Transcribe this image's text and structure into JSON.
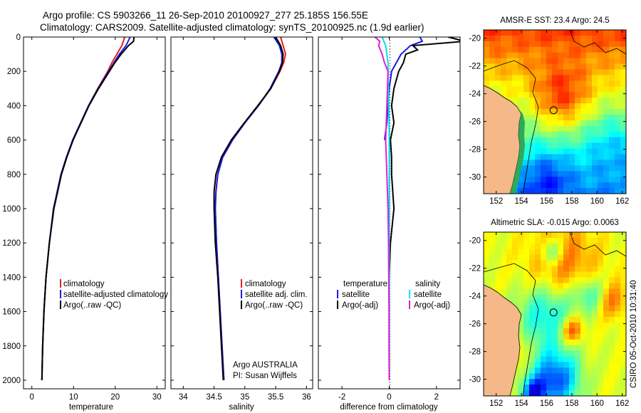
{
  "header": {
    "title_line1": "Argo profile: CS 5903266_11 26-Sep-2010 20100927_277 25.185S 156.55E",
    "title_line2": "Climatology: CARS2009. Satellite-adjusted climatology: synTS_20100925.nc (1.9d earlier)"
  },
  "chart_data": [
    {
      "type": "line",
      "id": "temperature",
      "xlabel": "temperature",
      "ylabel": "",
      "xlim": [
        -2,
        32
      ],
      "ylim": [
        0,
        2050
      ],
      "y_inverted": true,
      "x_ticks": [
        "0",
        "10",
        "20",
        "30"
      ],
      "y_ticks": [
        "0",
        "200",
        "400",
        "600",
        "800",
        "1000",
        "1200",
        "1400",
        "1600",
        "1800",
        "2000"
      ],
      "legend": [
        "climatology",
        "satellite-adjusted climatology",
        "Argo(..raw -QC)"
      ],
      "series": [
        {
          "name": "climatology",
          "color": "#e0201a",
          "depth": [
            0,
            50,
            100,
            150,
            200,
            300,
            400,
            500,
            600,
            700,
            800,
            1000,
            1200,
            1400,
            1600,
            1800,
            2000
          ],
          "values": [
            22.3,
            21.6,
            20.4,
            19.2,
            18.2,
            15.8,
            13.6,
            11.7,
            9.8,
            8.3,
            7.0,
            5.2,
            4.2,
            3.4,
            2.9,
            2.6,
            2.4
          ]
        },
        {
          "name": "satellite-adjusted climatology",
          "color": "#1a1ae8",
          "depth": [
            0,
            50,
            100,
            150,
            200,
            300,
            400,
            500,
            600,
            700,
            800,
            1000,
            1200,
            1400,
            1600,
            1800,
            2000
          ],
          "values": [
            23.6,
            22.6,
            21.0,
            19.7,
            18.4,
            15.9,
            13.6,
            11.7,
            9.8,
            8.3,
            7.0,
            5.2,
            4.2,
            3.4,
            2.9,
            2.6,
            2.4
          ]
        },
        {
          "name": "Argo(..raw -QC)",
          "color": "#000000",
          "depth": [
            0,
            25,
            50,
            100,
            150,
            200,
            300,
            400,
            500,
            600,
            700,
            800,
            1000,
            1200,
            1400,
            1600,
            1800,
            2000
          ],
          "values": [
            24.5,
            24.4,
            23.2,
            21.4,
            19.9,
            18.6,
            16.0,
            13.7,
            11.8,
            9.9,
            8.4,
            7.1,
            5.3,
            4.2,
            3.4,
            2.9,
            2.6,
            2.4
          ]
        }
      ]
    },
    {
      "type": "line",
      "id": "salinity",
      "xlabel": "salinity",
      "ylabel": "",
      "xlim": [
        33.8,
        36.1
      ],
      "ylim": [
        0,
        2050
      ],
      "y_inverted": true,
      "x_ticks": [
        "34",
        "34.5",
        "35",
        "35.5",
        "36"
      ],
      "legend": [
        "climatology",
        "satellite adj. clim.",
        "Argo(..raw -QC)"
      ],
      "annotation_line1": "Argo AUSTRALIA",
      "annotation_line2": "PI: Susan Wijffels",
      "series": [
        {
          "name": "climatology",
          "color": "#e0201a",
          "depth": [
            0,
            50,
            100,
            150,
            200,
            300,
            400,
            500,
            600,
            700,
            800,
            900,
            1000,
            1200,
            1400,
            1600,
            1800,
            2000
          ],
          "values": [
            35.58,
            35.62,
            35.66,
            35.63,
            35.57,
            35.42,
            35.22,
            35.0,
            34.8,
            34.64,
            34.56,
            34.53,
            34.52,
            34.54,
            34.57,
            34.6,
            34.63,
            34.66
          ]
        },
        {
          "name": "satellite adj. clim.",
          "color": "#1a1ae8",
          "depth": [
            0,
            50,
            100,
            150,
            200,
            300,
            400,
            500,
            600,
            700,
            800,
            900,
            1000,
            1200,
            1400,
            1600,
            1800,
            2000
          ],
          "values": [
            35.47,
            35.56,
            35.6,
            35.6,
            35.55,
            35.41,
            35.22,
            35.0,
            34.8,
            34.64,
            34.56,
            34.53,
            34.52,
            34.54,
            34.57,
            34.6,
            34.63,
            34.66
          ]
        },
        {
          "name": "Argo(..raw -QC)",
          "color": "#000000",
          "depth": [
            0,
            50,
            100,
            150,
            200,
            300,
            400,
            500,
            600,
            700,
            800,
            900,
            1000,
            1200,
            1400,
            1600,
            1800,
            2000
          ],
          "values": [
            35.5,
            35.58,
            35.62,
            35.61,
            35.56,
            35.42,
            35.21,
            34.99,
            34.78,
            34.62,
            34.53,
            34.5,
            34.5,
            34.52,
            34.56,
            34.59,
            34.62,
            34.65
          ]
        }
      ]
    },
    {
      "type": "line",
      "id": "difference",
      "xlabel": "difference from climatology",
      "ylabel": "",
      "xlim": [
        -3,
        3
      ],
      "ylim": [
        0,
        2050
      ],
      "y_inverted": true,
      "x_ticks": [
        "-2",
        "0",
        "2"
      ],
      "legend_left_title": "temperature",
      "legend_right_title": "salinity",
      "legend": [
        "satellite",
        "Argo(-adj)",
        "satellite",
        "Argo(-adj)"
      ],
      "series": [
        {
          "name": "temperature satellite",
          "color": "#1a1ae8",
          "depth": [
            0,
            25,
            50,
            100,
            150,
            200,
            300,
            400,
            500,
            600
          ],
          "values": [
            1.3,
            1.4,
            0.9,
            0.5,
            0.3,
            0.1,
            0.0,
            -0.05,
            -0.1,
            -0.2
          ]
        },
        {
          "name": "temperature Argo(-adj)",
          "color": "#000000",
          "depth": [
            0,
            25,
            50,
            75,
            100,
            150,
            200,
            300,
            400,
            500,
            600,
            700,
            800,
            1000,
            1200,
            1400,
            1600,
            1800,
            2000
          ],
          "values": [
            2.5,
            3.2,
            1.0,
            1.2,
            0.7,
            0.6,
            0.4,
            0.2,
            0.1,
            0.2,
            0.05,
            0.1,
            0.1,
            0.2,
            0.05,
            0.0,
            0.0,
            0.0,
            0.0
          ]
        },
        {
          "name": "salinity satellite",
          "color": "#00e0f0",
          "depth": [
            0,
            50,
            100,
            150,
            200,
            300,
            400,
            500,
            600,
            700,
            800,
            1000,
            1200,
            1400,
            1600,
            1800,
            2000
          ],
          "values": [
            -0.3,
            -0.15,
            -0.1,
            -0.05,
            -0.05,
            -0.03,
            -0.02,
            -0.01,
            0.0,
            0.0,
            0.0,
            0.0,
            0.0,
            0.0,
            0.0,
            0.0,
            0.0
          ]
        },
        {
          "name": "salinity Argo(-adj)",
          "color": "#e020d0",
          "depth": [
            0,
            25,
            50,
            100,
            150,
            200,
            400,
            600,
            800,
            1000,
            1200,
            1400,
            1600,
            1800,
            2000
          ],
          "values": [
            -0.6,
            -0.4,
            -0.45,
            -0.3,
            -0.2,
            -0.05,
            -0.1,
            -0.15,
            -0.1,
            -0.05,
            -0.03,
            -0.02,
            -0.01,
            -0.01,
            0.0
          ]
        }
      ]
    },
    {
      "type": "heatmap",
      "id": "sst_map",
      "title": "AMSR-E SST: 23.4 Argo: 24.5",
      "x_ticks": [
        "152",
        "154",
        "156",
        "158",
        "160",
        "162"
      ],
      "y_ticks": [
        "-20",
        "-22",
        "-24",
        "-26",
        "-28",
        "-30"
      ],
      "xlim": [
        151,
        162.3
      ],
      "ylim": [
        -31.2,
        -19.4
      ],
      "argo_position": [
        156.55,
        -25.185
      ]
    },
    {
      "type": "heatmap",
      "id": "sla_map",
      "title": "Altimetric SLA: -0.015 Argo: 0.0063",
      "x_ticks": [
        "152",
        "154",
        "156",
        "158",
        "160",
        "162"
      ],
      "y_ticks": [
        "-20",
        "-22",
        "-24",
        "-26",
        "-28",
        "-30"
      ],
      "xlim": [
        151,
        162.3
      ],
      "ylim": [
        -31.2,
        -19.4
      ],
      "argo_position": [
        156.55,
        -25.185
      ]
    }
  ],
  "footer": {
    "credit": "CSIRO 05-Oct-2010 10:31:40"
  },
  "colors": {
    "land": "#f5b888"
  }
}
